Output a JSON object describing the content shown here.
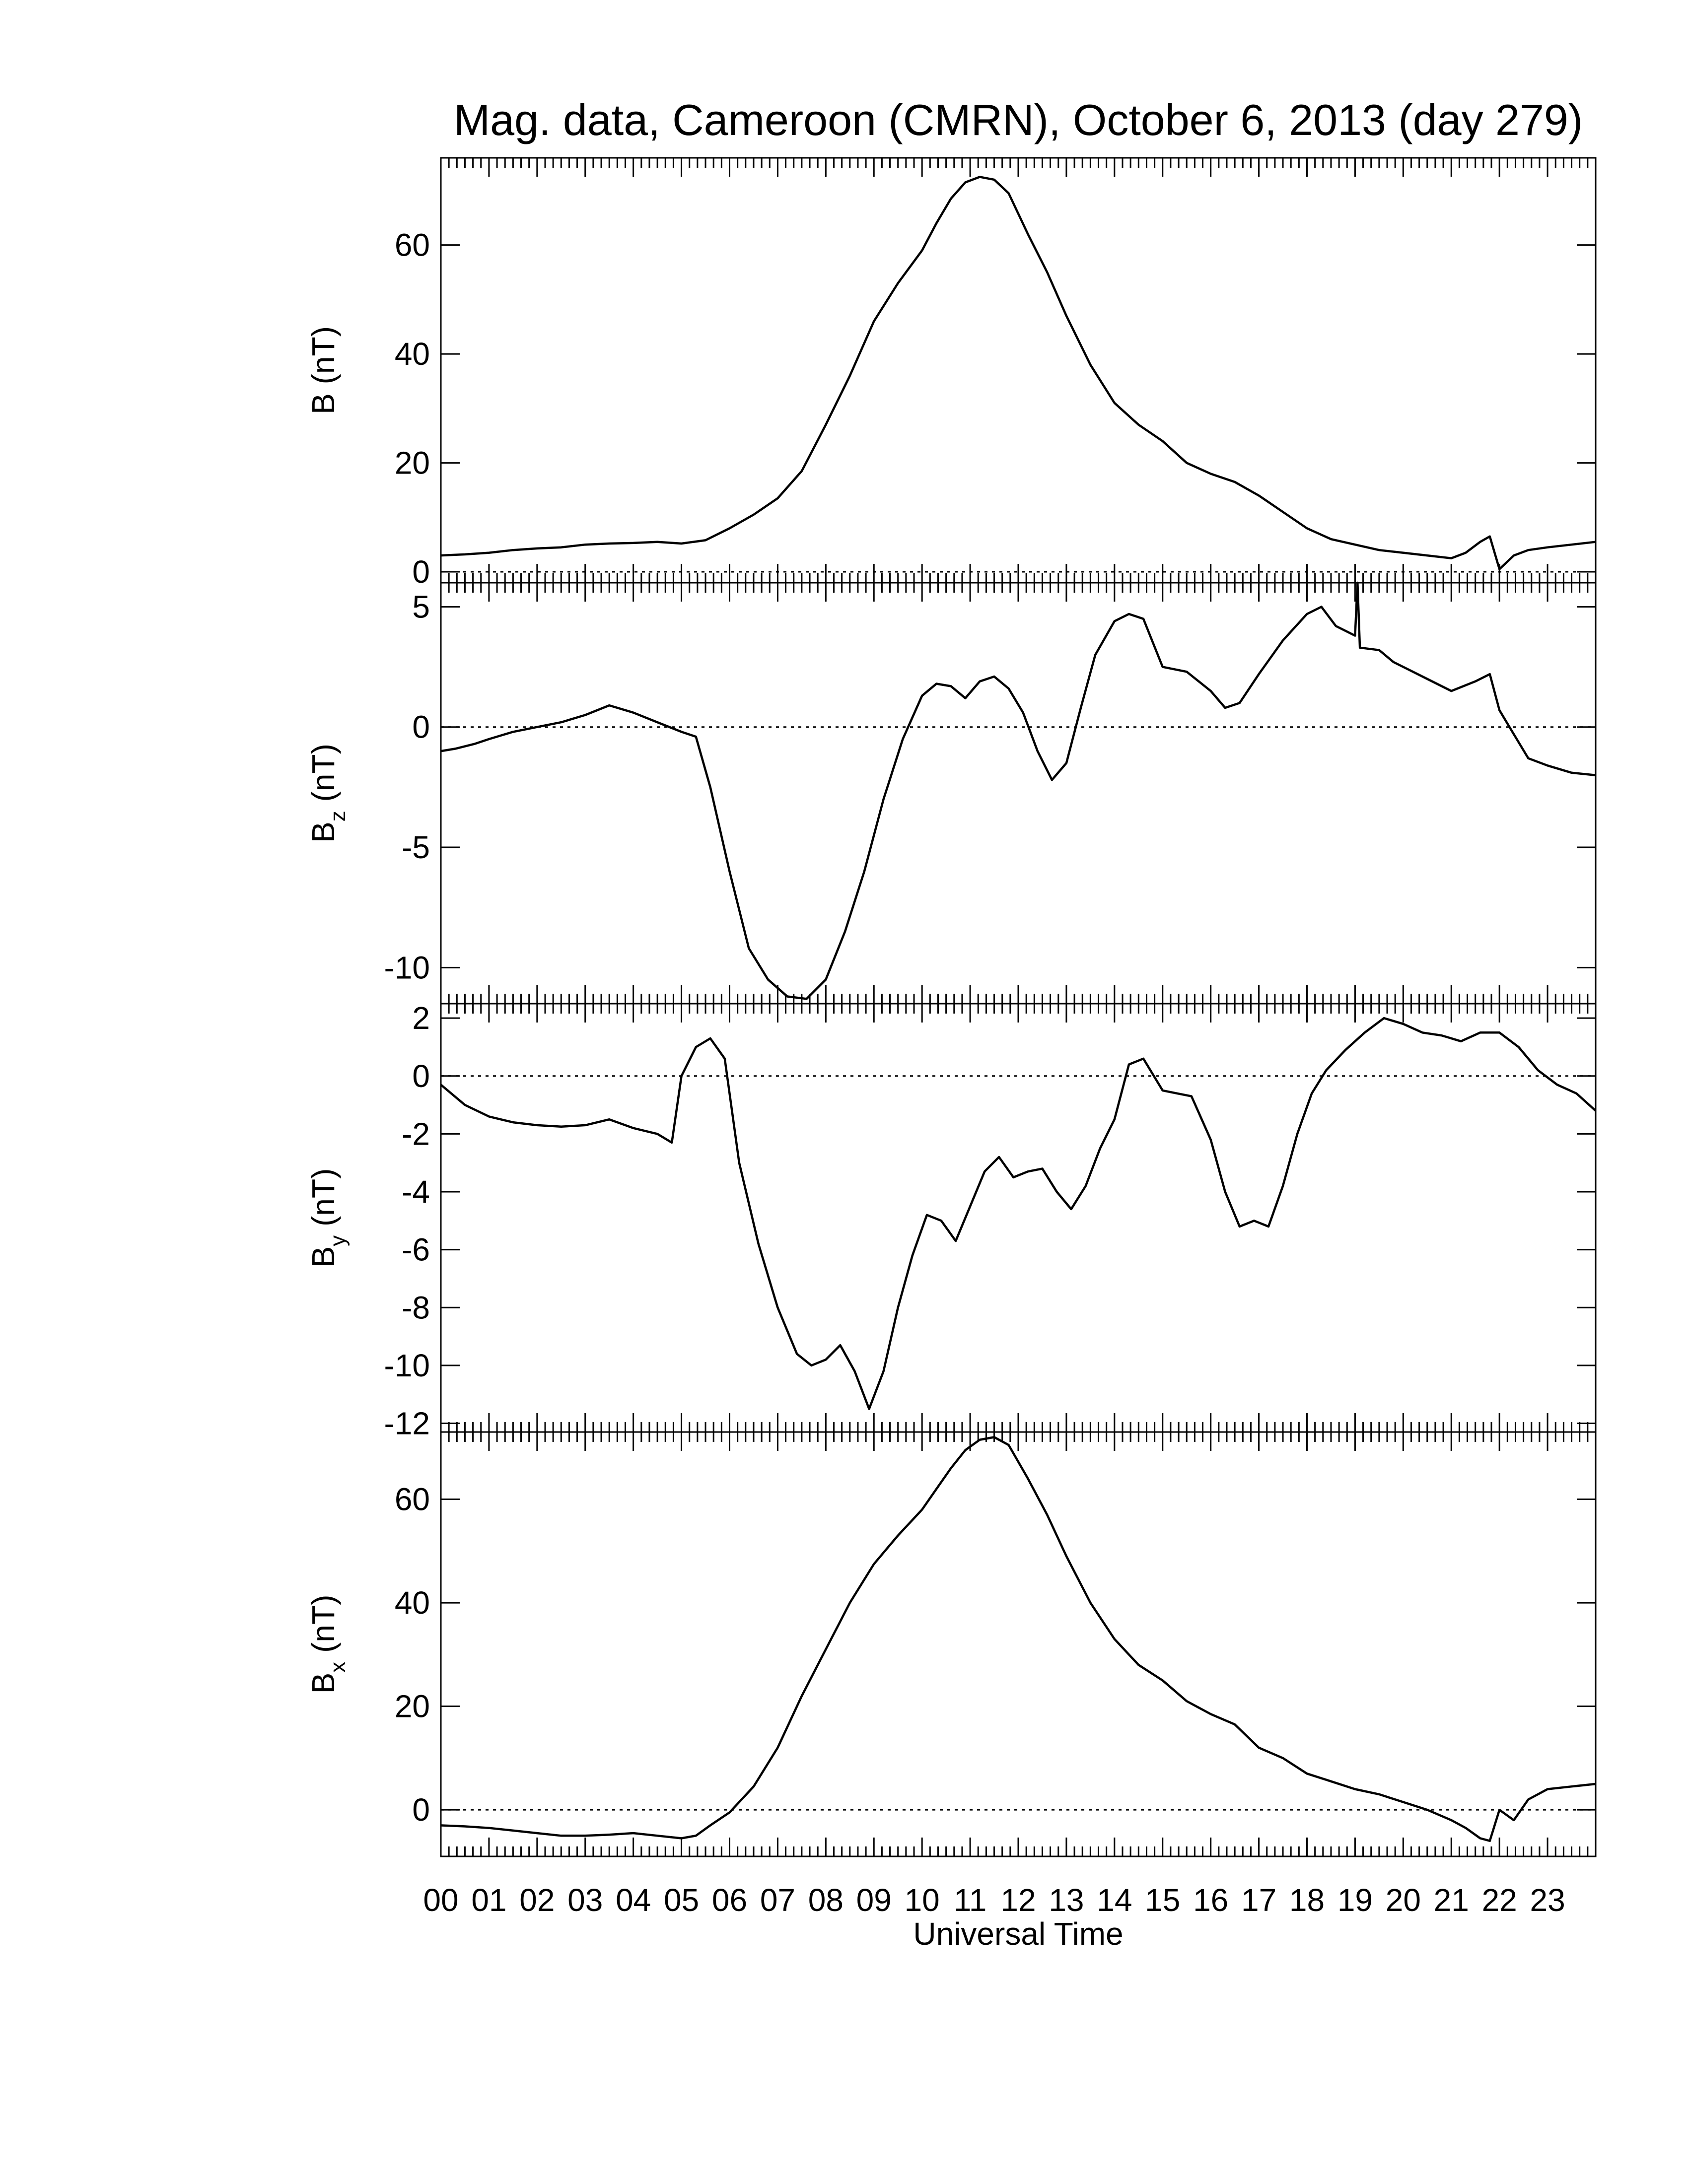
{
  "title": "Mag. data, Cameroon (CMRN), October 6, 2013 (day 279)",
  "chart_data": {
    "type": "line",
    "title": "Mag. data, Cameroon (CMRN), October 6, 2013 (day 279)",
    "xlabel": "Universal Time",
    "x_unit": "hour (UT)",
    "xlim": [
      0,
      24
    ],
    "x_tick_labels": [
      "00",
      "01",
      "02",
      "03",
      "04",
      "05",
      "06",
      "07",
      "08",
      "09",
      "10",
      "11",
      "12",
      "13",
      "14",
      "15",
      "16",
      "17",
      "18",
      "19",
      "20",
      "21",
      "22",
      "23"
    ],
    "grid": false,
    "zero_reference_line": "dotted",
    "panels": [
      {
        "ylabel_main": "B",
        "ylabel_sub": "",
        "ylabel_unit": "(nT)",
        "ylim": [
          -2,
          76
        ],
        "yticks": [
          0,
          20,
          40,
          60
        ],
        "series": [
          {
            "x": [
              0,
              0.5,
              1,
              1.5,
              2,
              2.5,
              3,
              3.5,
              4,
              4.5,
              5,
              5.5,
              6,
              6.5,
              7,
              7.5,
              8,
              8.5,
              9,
              9.5,
              10,
              10.3,
              10.6,
              10.9,
              11.2,
              11.5,
              11.8,
              12.2,
              12.6,
              13,
              13.5,
              14,
              14.5,
              15,
              15.5,
              16,
              16.5,
              17,
              17.5,
              18,
              18.5,
              19,
              19.5,
              20,
              20.5,
              21,
              21.3,
              21.6,
              21.8,
              22,
              22.3,
              22.6,
              23,
              23.5,
              24
            ],
            "y": [
              3,
              3.2,
              3.5,
              4,
              4.3,
              4.5,
              5,
              5.2,
              5.3,
              5.5,
              5.2,
              5.8,
              8,
              10.5,
              13.5,
              18.5,
              27,
              36,
              46,
              53,
              59,
              64,
              68.5,
              71.5,
              72.5,
              72,
              69.5,
              62,
              55,
              47,
              38,
              31,
              27,
              24,
              20,
              18,
              16.5,
              14,
              11,
              8,
              6,
              5,
              4,
              3.5,
              3,
              2.5,
              3.5,
              5.5,
              6.5,
              0.5,
              3,
              4,
              4.5,
              5,
              5.5
            ]
          }
        ]
      },
      {
        "ylabel_main": "B",
        "ylabel_sub": "z",
        "ylabel_unit": "(nT)",
        "ylim": [
          -11.5,
          6
        ],
        "yticks": [
          -10,
          -5,
          0,
          5
        ],
        "series": [
          {
            "x": [
              0,
              0.3,
              0.7,
              1,
              1.5,
              2,
              2.5,
              3,
              3.5,
              4,
              4.5,
              5,
              5.3,
              5.6,
              6,
              6.4,
              6.8,
              7.2,
              7.6,
              8,
              8.4,
              8.8,
              9.2,
              9.6,
              10,
              10.3,
              10.6,
              10.9,
              11.2,
              11.5,
              11.8,
              12.1,
              12.4,
              12.7,
              13,
              13.3,
              13.6,
              14,
              14.3,
              14.6,
              15,
              15.5,
              16,
              16.3,
              16.6,
              17,
              17.5,
              18,
              18.3,
              18.6,
              19,
              19.05,
              19.1,
              19.5,
              19.8,
              20.1,
              20.5,
              21,
              21.5,
              21.8,
              22,
              22.3,
              22.6,
              23,
              23.5,
              24
            ],
            "y": [
              -1,
              -0.9,
              -0.7,
              -0.5,
              -0.2,
              0,
              0.2,
              0.5,
              0.9,
              0.6,
              0.2,
              -0.2,
              -0.4,
              -2.5,
              -6,
              -9.2,
              -10.5,
              -11.2,
              -11.3,
              -10.5,
              -8.5,
              -6,
              -3,
              -0.5,
              1.3,
              1.8,
              1.7,
              1.2,
              1.9,
              2.1,
              1.6,
              0.6,
              -1,
              -2.2,
              -1.5,
              0.8,
              3,
              4.4,
              4.7,
              4.5,
              2.5,
              2.3,
              1.5,
              0.8,
              1,
              2.2,
              3.6,
              4.7,
              5,
              4.2,
              3.8,
              6,
              3.3,
              3.2,
              2.7,
              2.4,
              2,
              1.5,
              1.9,
              2.2,
              0.7,
              -0.3,
              -1.3,
              -1.6,
              -1.9,
              -2
            ]
          }
        ]
      },
      {
        "ylabel_main": "B",
        "ylabel_sub": "y",
        "ylabel_unit": "(nT)",
        "ylim": [
          -12.3,
          2.5
        ],
        "yticks": [
          -12,
          -10,
          -8,
          -6,
          -4,
          -2,
          0,
          2
        ],
        "series": [
          {
            "x": [
              0,
              0.5,
              1,
              1.5,
              2,
              2.5,
              3,
              3.5,
              4,
              4.5,
              4.8,
              5,
              5.3,
              5.6,
              5.9,
              6.2,
              6.6,
              7,
              7.4,
              7.7,
              8,
              8.3,
              8.6,
              8.9,
              9.2,
              9.5,
              9.8,
              10.1,
              10.4,
              10.7,
              11,
              11.3,
              11.6,
              11.9,
              12.2,
              12.5,
              12.8,
              13.1,
              13.4,
              13.7,
              14,
              14.3,
              14.6,
              15,
              15.3,
              15.6,
              16,
              16.3,
              16.6,
              16.9,
              17.2,
              17.5,
              17.8,
              18.1,
              18.4,
              18.8,
              19.2,
              19.6,
              20,
              20.4,
              20.8,
              21.2,
              21.6,
              22,
              22.4,
              22.8,
              23.2,
              23.6,
              24
            ],
            "y": [
              -0.3,
              -1,
              -1.4,
              -1.6,
              -1.7,
              -1.75,
              -1.7,
              -1.5,
              -1.8,
              -2,
              -2.3,
              0,
              1,
              1.3,
              0.6,
              -3,
              -5.8,
              -8,
              -9.6,
              -10,
              -9.8,
              -9.3,
              -10.2,
              -11.5,
              -10.2,
              -8,
              -6.2,
              -4.8,
              -5,
              -5.7,
              -4.5,
              -3.3,
              -2.8,
              -3.5,
              -3.3,
              -3.2,
              -4,
              -4.6,
              -3.8,
              -2.5,
              -1.5,
              0.4,
              0.6,
              -0.5,
              -0.6,
              -0.7,
              -2.2,
              -4,
              -5.2,
              -5,
              -5.2,
              -3.8,
              -2,
              -0.6,
              0.2,
              0.9,
              1.5,
              2,
              1.8,
              1.5,
              1.4,
              1.2,
              1.5,
              1.5,
              1,
              0.2,
              -0.3,
              -0.6,
              -1.2
            ]
          }
        ]
      },
      {
        "ylabel_main": "B",
        "ylabel_sub": "x",
        "ylabel_unit": "(nT)",
        "ylim": [
          -9,
          73
        ],
        "yticks": [
          0,
          20,
          40,
          60
        ],
        "series": [
          {
            "x": [
              0,
              0.5,
              1,
              1.5,
              2,
              2.5,
              3,
              3.5,
              4,
              4.5,
              5,
              5.3,
              5.6,
              6,
              6.5,
              7,
              7.5,
              8,
              8.5,
              9,
              9.5,
              10,
              10.3,
              10.6,
              10.9,
              11.2,
              11.5,
              11.8,
              12.2,
              12.6,
              13,
              13.5,
              14,
              14.5,
              15,
              15.5,
              16,
              16.5,
              17,
              17.5,
              18,
              18.5,
              19,
              19.5,
              20,
              20.5,
              21,
              21.3,
              21.6,
              21.8,
              22,
              22.3,
              22.6,
              23,
              23.5,
              24
            ],
            "y": [
              -3,
              -3.2,
              -3.5,
              -4,
              -4.5,
              -5,
              -5,
              -4.8,
              -4.5,
              -5,
              -5.5,
              -5,
              -3,
              -0.5,
              4.5,
              12,
              22,
              31,
              40,
              47.5,
              53,
              58,
              62,
              66,
              69.5,
              71.5,
              72,
              70.5,
              64,
              57,
              49,
              40,
              33,
              28,
              25,
              21,
              18.5,
              16.5,
              12,
              10,
              7,
              5.5,
              4,
              3,
              1.5,
              0,
              -2,
              -3.5,
              -5.5,
              -6,
              0,
              -2,
              2,
              4,
              4.5,
              5
            ]
          }
        ]
      }
    ]
  }
}
